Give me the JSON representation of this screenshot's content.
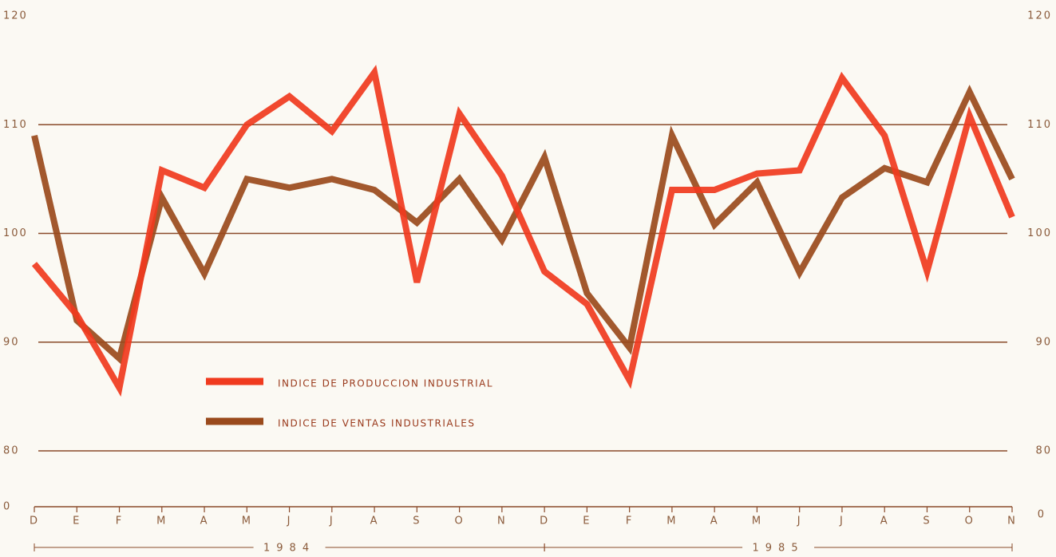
{
  "chart_data": {
    "type": "line",
    "categories": [
      "D",
      "E",
      "F",
      "M",
      "A",
      "M",
      "J",
      "J",
      "A",
      "S",
      "O",
      "N",
      "D",
      "E",
      "F",
      "M",
      "A",
      "M",
      "J",
      "J",
      "A",
      "S",
      "O",
      "N"
    ],
    "series": [
      {
        "name": "INDICE DE PRODUCCION INDUSTRIAL",
        "color": "#f03a1e",
        "values": [
          97.2,
          92.5,
          85.8,
          105.8,
          104.2,
          110,
          112.6,
          109.4,
          114.8,
          95.5,
          111,
          105.3,
          96.5,
          93.5,
          86.5,
          104,
          104,
          105.5,
          105.8,
          114.3,
          109,
          96.5,
          110.8,
          101.5
        ]
      },
      {
        "name": "INDICE DE VENTAS INDUSTRIALES",
        "color": "#9a4a1c",
        "values": [
          109,
          92,
          88.5,
          103.3,
          96.3,
          105,
          104.2,
          105,
          104,
          101,
          105,
          99.4,
          107,
          94.5,
          89.5,
          109,
          100.8,
          104.7,
          96.4,
          103.3,
          106,
          104.7,
          113,
          105
        ]
      }
    ],
    "ylim": [
      80,
      120
    ],
    "yticks": [
      80,
      90,
      100,
      110,
      120
    ],
    "y_origin_label": "0",
    "grid": true,
    "year_groups": [
      {
        "label": "1984",
        "from": 0,
        "to": 12
      },
      {
        "label": "1985",
        "from": 12,
        "to": 23
      }
    ]
  }
}
